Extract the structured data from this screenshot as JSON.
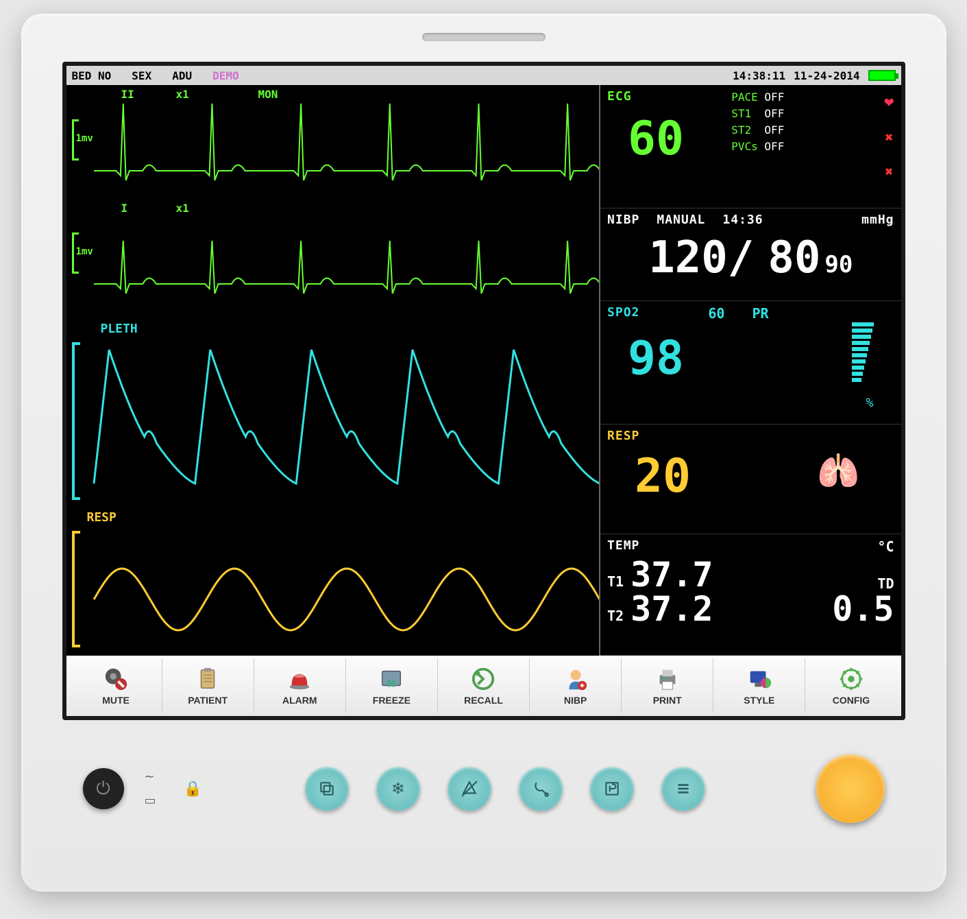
{
  "statusbar": {
    "bed_label": "BED NO",
    "sex_label": "SEX",
    "adu_label": "ADU",
    "demo_label": "DEMO",
    "time": "14:38:11",
    "date": "11-24-2014",
    "battery_pct": 100
  },
  "waves": {
    "ecg2": {
      "lead": "II",
      "gain": "x1",
      "mode": "MON",
      "scale": "1mv",
      "color": "#66ff33",
      "stroke": 2,
      "peaks": 6,
      "baseline": 0.75,
      "amp": 0.7,
      "width": 0.02
    },
    "ecg1": {
      "lead": "I",
      "gain": "x1",
      "scale": "1mv",
      "color": "#66ff33",
      "stroke": 2,
      "peaks": 6,
      "baseline": 0.75,
      "amp": 0.45,
      "width": 0.02
    },
    "pleth": {
      "label": "PLETH",
      "color": "#33e0e0",
      "stroke": 3,
      "cycles": 5,
      "baseline": 0.85,
      "amp": 0.75,
      "rise": 0.15,
      "fall": 0.85
    },
    "resp": {
      "label": "RESP",
      "color": "#ffcc33",
      "stroke": 3,
      "cycles": 4.5,
      "baseline": 0.6,
      "amp": 0.45
    }
  },
  "vitals": {
    "ecg": {
      "title": "ECG",
      "color": "#66ff33",
      "value": "60",
      "pace_label": "PACE",
      "pace_val": "OFF",
      "st1_label": "ST1",
      "st1_val": "OFF",
      "st2_label": "ST2",
      "st2_val": "OFF",
      "pvc_label": "PVCs",
      "pvc_val": "OFF"
    },
    "nibp": {
      "title": "NIBP",
      "mode": "MANUAL",
      "time": "14:36",
      "unit": "mmHg",
      "sys": "120",
      "slash": "/",
      "dia": "80",
      "mean": "90",
      "color": "#ffffff"
    },
    "spo2": {
      "title": "SPO2",
      "color": "#33e0e0",
      "value": "98",
      "pr_label": "PR",
      "pr_val": "60",
      "pct": "%",
      "bars": 10
    },
    "resp": {
      "title": "RESP",
      "color": "#ffcc33",
      "value": "20"
    },
    "temp": {
      "title": "TEMP",
      "color": "#ffffff",
      "unit": "°C",
      "t1_label": "T1",
      "t1": "37.7",
      "t2_label": "T2",
      "t2": "37.2",
      "td_label": "TD",
      "td": "0.5"
    }
  },
  "toolbar": [
    {
      "id": "mute",
      "label": "MUTE"
    },
    {
      "id": "patient",
      "label": "PATIENT"
    },
    {
      "id": "alarm",
      "label": "ALARM"
    },
    {
      "id": "freeze",
      "label": "FREEZE"
    },
    {
      "id": "recall",
      "label": "RECALL"
    },
    {
      "id": "nibp",
      "label": "NIBP"
    },
    {
      "id": "print",
      "label": "PRINT"
    },
    {
      "id": "style",
      "label": "STYLE"
    },
    {
      "id": "config",
      "label": "CONFIG"
    }
  ],
  "icons": {
    "mute": "#b02020",
    "patient": "#caa760",
    "alarm": "#d03030",
    "freeze": "#7090a0",
    "recall": "#60b060",
    "nibp": "#4080c0",
    "print": "#808080",
    "style": "#4060c0",
    "config": "#60c060"
  }
}
